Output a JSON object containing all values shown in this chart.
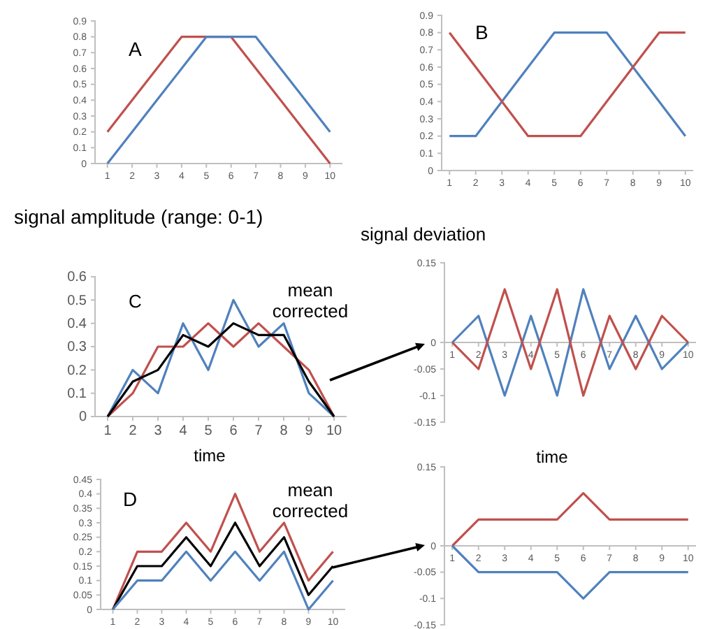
{
  "chart_data": [
    {
      "type": "line",
      "categories": [
        "1",
        "2",
        "3",
        "4",
        "5",
        "6",
        "7",
        "8",
        "9",
        "10"
      ],
      "ylim": [
        0,
        0.9
      ],
      "yticks": [
        0,
        0.1,
        0.2,
        0.3,
        0.4,
        0.5,
        0.6,
        0.7,
        0.8,
        0.9
      ],
      "annotations": [
        "A"
      ],
      "series": [
        {
          "color": "#c0504d",
          "values": [
            0.2,
            0.4,
            0.6,
            0.8,
            0.8,
            0.8,
            0.6,
            0.4,
            0.2,
            0
          ]
        },
        {
          "color": "#4f81bd",
          "values": [
            0,
            0.2,
            0.4,
            0.6,
            0.8,
            0.8,
            0.8,
            0.6,
            0.4,
            0.2
          ]
        }
      ]
    },
    {
      "type": "line",
      "categories": [
        "1",
        "2",
        "3",
        "4",
        "5",
        "6",
        "7",
        "8",
        "9",
        "10"
      ],
      "ylim": [
        0,
        0.9
      ],
      "yticks": [
        0,
        0.1,
        0.2,
        0.3,
        0.4,
        0.5,
        0.6,
        0.7,
        0.8,
        0.9
      ],
      "annotations": [
        "B"
      ],
      "series": [
        {
          "color": "#4f81bd",
          "values": [
            0.2,
            0.2,
            0.4,
            0.6,
            0.8,
            0.8,
            0.8,
            0.6,
            0.4,
            0.2
          ]
        },
        {
          "color": "#c0504d",
          "values": [
            0.8,
            0.6,
            0.4,
            0.2,
            0.2,
            0.2,
            0.4,
            0.6,
            0.8,
            0.8
          ]
        }
      ]
    },
    {
      "type": "line",
      "title": "signal amplitude (range: 0-1)",
      "xlabel": "time",
      "categories": [
        "1",
        "2",
        "3",
        "4",
        "5",
        "6",
        "7",
        "8",
        "9",
        "10"
      ],
      "ylim": [
        0,
        0.6
      ],
      "yticks": [
        0,
        0.1,
        0.2,
        0.3,
        0.4,
        0.5,
        0.6
      ],
      "annotations": [
        "C",
        "mean corrected"
      ],
      "series": [
        {
          "color": "#4f81bd",
          "values": [
            0,
            0.2,
            0.1,
            0.4,
            0.2,
            0.5,
            0.3,
            0.4,
            0.1,
            0
          ]
        },
        {
          "color": "#c0504d",
          "values": [
            0,
            0.1,
            0.3,
            0.3,
            0.4,
            0.3,
            0.4,
            0.3,
            0.2,
            0
          ]
        },
        {
          "color": "#000000",
          "values": [
            0,
            0.15,
            0.2,
            0.35,
            0.3,
            0.4,
            0.35,
            0.35,
            0.15,
            0
          ]
        }
      ]
    },
    {
      "type": "line",
      "title": "signal deviation",
      "xlabel": "time",
      "categories": [
        "1",
        "2",
        "3",
        "4",
        "5",
        "6",
        "7",
        "8",
        "9",
        "10"
      ],
      "ylim": [
        -0.15,
        0.15
      ],
      "yticks": [
        -0.15,
        -0.1,
        -0.05,
        0,
        0.15
      ],
      "series": [
        {
          "color": "#4f81bd",
          "values": [
            0,
            0.05,
            -0.1,
            0.05,
            -0.1,
            0.1,
            -0.05,
            0.05,
            -0.05,
            0
          ]
        },
        {
          "color": "#c0504d",
          "values": [
            0,
            -0.05,
            0.1,
            -0.05,
            0.1,
            -0.1,
            0.05,
            -0.05,
            0.05,
            0
          ]
        }
      ]
    },
    {
      "type": "line",
      "categories": [
        "1",
        "2",
        "3",
        "4",
        "5",
        "6",
        "7",
        "8",
        "9",
        "10"
      ],
      "ylim": [
        0,
        0.45
      ],
      "yticks": [
        0,
        0.05,
        0.1,
        0.15,
        0.2,
        0.25,
        0.3,
        0.35,
        0.4,
        0.45
      ],
      "annotations": [
        "D",
        "mean corrected"
      ],
      "series": [
        {
          "color": "#c0504d",
          "values": [
            0,
            0.2,
            0.2,
            0.3,
            0.2,
            0.4,
            0.2,
            0.3,
            0.1,
            0.2
          ]
        },
        {
          "color": "#000000",
          "values": [
            0,
            0.15,
            0.15,
            0.25,
            0.15,
            0.3,
            0.15,
            0.25,
            0.05,
            0.15
          ]
        },
        {
          "color": "#4f81bd",
          "values": [
            0,
            0.1,
            0.1,
            0.2,
            0.1,
            0.2,
            0.1,
            0.2,
            0,
            0.1
          ]
        }
      ]
    },
    {
      "type": "line",
      "categories": [
        "1",
        "2",
        "3",
        "4",
        "5",
        "6",
        "7",
        "8",
        "9",
        "10"
      ],
      "ylim": [
        -0.15,
        0.15
      ],
      "yticks": [
        -0.15,
        -0.1,
        -0.05,
        0,
        0.15
      ],
      "series": [
        {
          "color": "#c0504d",
          "values": [
            0,
            0.05,
            0.05,
            0.05,
            0.05,
            0.1,
            0.05,
            0.05,
            0.05,
            0.05
          ]
        },
        {
          "color": "#4f81bd",
          "values": [
            0,
            -0.05,
            -0.05,
            -0.05,
            -0.05,
            -0.1,
            -0.05,
            -0.05,
            -0.05,
            -0.05
          ]
        }
      ]
    }
  ]
}
